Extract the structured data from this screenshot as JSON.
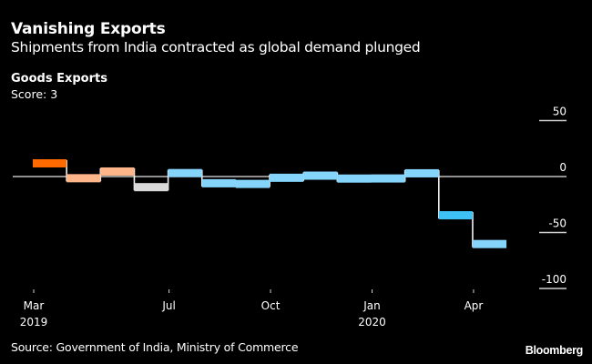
{
  "header": {
    "title": "Vanishing Exports",
    "subtitle": "Shipments from India contracted as global demand plunged"
  },
  "chart_data": {
    "type": "line",
    "subtype": "step",
    "title": "Goods Exports",
    "subtitle": "Score: 3",
    "xlabel": "",
    "ylabel": "",
    "ylim": [
      -100,
      50
    ],
    "yticks": [
      50,
      0,
      -50,
      -100
    ],
    "ytick_labels": [
      "50",
      "0",
      "-50",
      "-100"
    ],
    "xticks": [
      {
        "month_index": 0,
        "label": "Mar",
        "sublabel": "2019"
      },
      {
        "month_index": 4,
        "label": "Jul",
        "sublabel": ""
      },
      {
        "month_index": 7,
        "label": "Oct",
        "sublabel": ""
      },
      {
        "month_index": 10,
        "label": "Jan",
        "sublabel": "2020"
      },
      {
        "month_index": 13,
        "label": "Apr",
        "sublabel": ""
      }
    ],
    "grid": false,
    "zero_line": true,
    "y_axis_position": "right",
    "series": [
      {
        "name": "Goods Exports",
        "x": [
          "2019-03",
          "2019-04",
          "2019-05",
          "2019-06",
          "2019-07",
          "2019-08",
          "2019-09",
          "2019-10",
          "2019-11",
          "2019-12",
          "2020-01",
          "2020-02",
          "2020-03",
          "2020-04"
        ],
        "values": [
          11.8,
          -1.5,
          4.5,
          -9.5,
          3.1,
          -6.0,
          -6.6,
          -1.1,
          0.8,
          -1.8,
          -1.7,
          2.9,
          -34.6,
          -60.3
        ],
        "colors": [
          "#ff6a00",
          "#ffb58a",
          "#ffb58a",
          "#d9d9d9",
          "#84d4fb",
          "#84d4fb",
          "#84d4fb",
          "#84d4fb",
          "#84d4fb",
          "#84d4fb",
          "#84d4fb",
          "#84d4fb",
          "#3ec1f5",
          "#84d4fb"
        ]
      }
    ]
  },
  "footer": {
    "source": "Source: Government of India, Ministry of Commerce",
    "brand": "Bloomberg"
  }
}
